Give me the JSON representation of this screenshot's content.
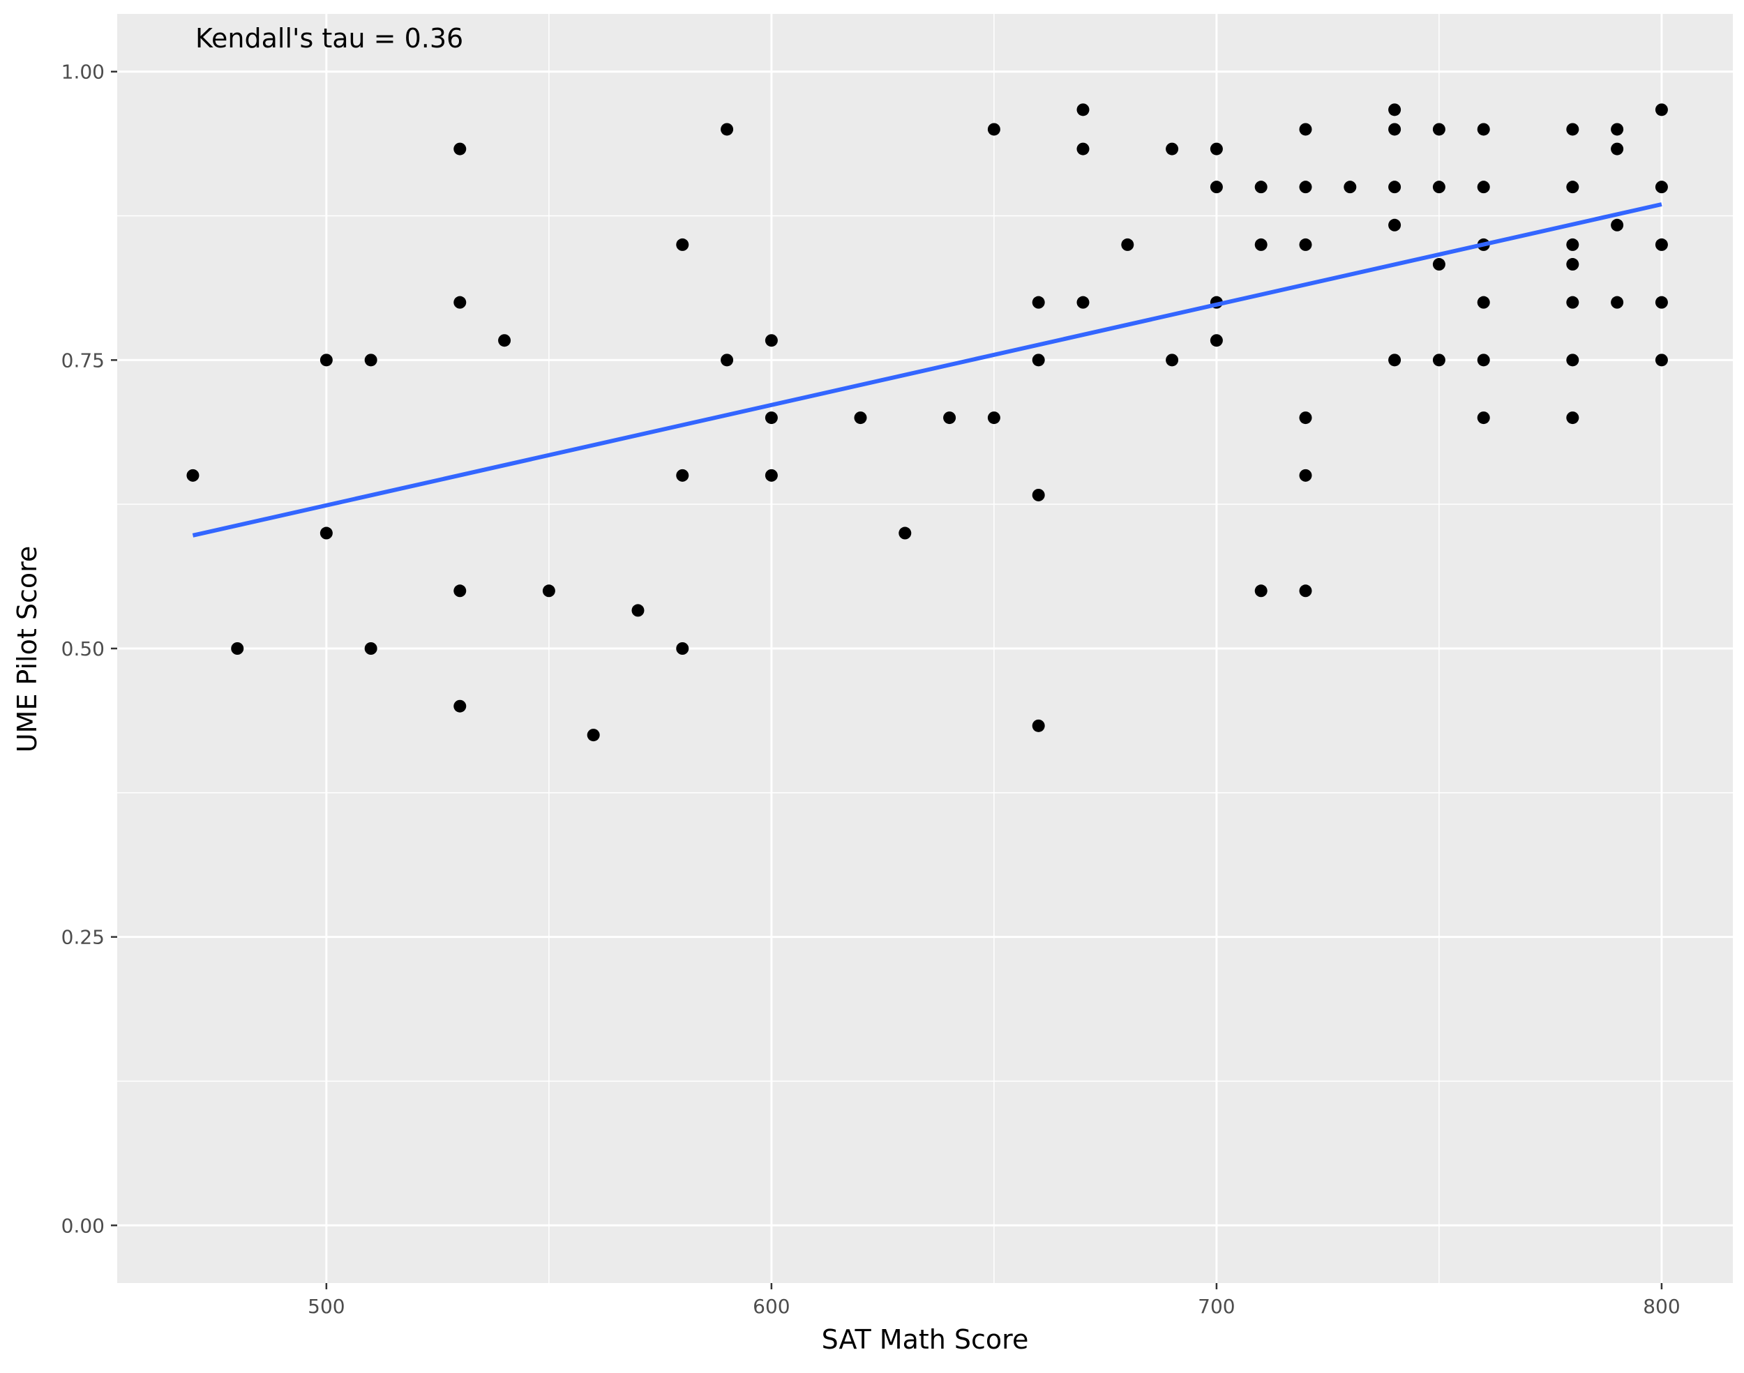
{
  "chart_data": {
    "type": "scatter",
    "title": "",
    "xlabel": "SAT Math Score",
    "ylabel": "UME Pilot Score",
    "xlim": [
      453,
      816
    ],
    "ylim": [
      -0.05,
      1.05
    ],
    "x_ticks": [
      500,
      600,
      700,
      800
    ],
    "y_ticks": [
      0.0,
      0.25,
      0.5,
      0.75,
      1.0
    ],
    "x_tick_labels": [
      "500",
      "600",
      "700",
      "800"
    ],
    "y_tick_labels": [
      "0.00",
      "0.25",
      "0.50",
      "0.75",
      "1.00"
    ],
    "grid": true,
    "annotation": "Kendall's tau = 0.36",
    "series": [
      {
        "points": [
          [
            470,
            0.65
          ],
          [
            480,
            0.5
          ],
          [
            500,
            0.75
          ],
          [
            500,
            0.6
          ],
          [
            510,
            0.75
          ],
          [
            510,
            0.5
          ],
          [
            530,
            0.933
          ],
          [
            530,
            0.8
          ],
          [
            530,
            0.55
          ],
          [
            530,
            0.45
          ],
          [
            540,
            0.767
          ],
          [
            550,
            0.55
          ],
          [
            560,
            0.425
          ],
          [
            570,
            0.533
          ],
          [
            580,
            0.85
          ],
          [
            580,
            0.65
          ],
          [
            580,
            0.5
          ],
          [
            590,
            0.95
          ],
          [
            590,
            0.75
          ],
          [
            600,
            0.767
          ],
          [
            600,
            0.7
          ],
          [
            600,
            0.65
          ],
          [
            620,
            0.7
          ],
          [
            630,
            0.6
          ],
          [
            640,
            0.7
          ],
          [
            650,
            0.95
          ],
          [
            650,
            0.7
          ],
          [
            660,
            0.8
          ],
          [
            660,
            0.75
          ],
          [
            660,
            0.633
          ],
          [
            660,
            0.433
          ],
          [
            670,
            0.967
          ],
          [
            670,
            0.933
          ],
          [
            670,
            0.8
          ],
          [
            680,
            0.85
          ],
          [
            690,
            0.933
          ],
          [
            690,
            0.75
          ],
          [
            700,
            0.933
          ],
          [
            700,
            0.9
          ],
          [
            700,
            0.8
          ],
          [
            700,
            0.767
          ],
          [
            710,
            0.9
          ],
          [
            710,
            0.85
          ],
          [
            710,
            0.55
          ],
          [
            720,
            0.95
          ],
          [
            720,
            0.9
          ],
          [
            720,
            0.85
          ],
          [
            720,
            0.7
          ],
          [
            720,
            0.65
          ],
          [
            720,
            0.55
          ],
          [
            730,
            0.9
          ],
          [
            740,
            0.967
          ],
          [
            740,
            0.95
          ],
          [
            740,
            0.9
          ],
          [
            740,
            0.867
          ],
          [
            740,
            0.75
          ],
          [
            750,
            0.95
          ],
          [
            750,
            0.9
          ],
          [
            750,
            0.833
          ],
          [
            750,
            0.75
          ],
          [
            760,
            0.95
          ],
          [
            760,
            0.9
          ],
          [
            760,
            0.85
          ],
          [
            760,
            0.8
          ],
          [
            760,
            0.75
          ],
          [
            760,
            0.7
          ],
          [
            780,
            0.95
          ],
          [
            780,
            0.9
          ],
          [
            780,
            0.85
          ],
          [
            780,
            0.833
          ],
          [
            780,
            0.8
          ],
          [
            780,
            0.75
          ],
          [
            780,
            0.7
          ],
          [
            790,
            0.95
          ],
          [
            790,
            0.933
          ],
          [
            790,
            0.867
          ],
          [
            790,
            0.8
          ],
          [
            800,
            0.967
          ],
          [
            800,
            0.9
          ],
          [
            800,
            0.85
          ],
          [
            800,
            0.8
          ],
          [
            800,
            0.75
          ]
        ],
        "color": "#000000"
      }
    ],
    "trend_line": {
      "x": [
        470,
        800
      ],
      "y": [
        0.598,
        0.885
      ],
      "color": "#3366FF"
    },
    "colors": {
      "panel_background": "#EBEBEB",
      "grid": "#FFFFFF",
      "point": "#000000",
      "trend": "#3366FF"
    }
  }
}
